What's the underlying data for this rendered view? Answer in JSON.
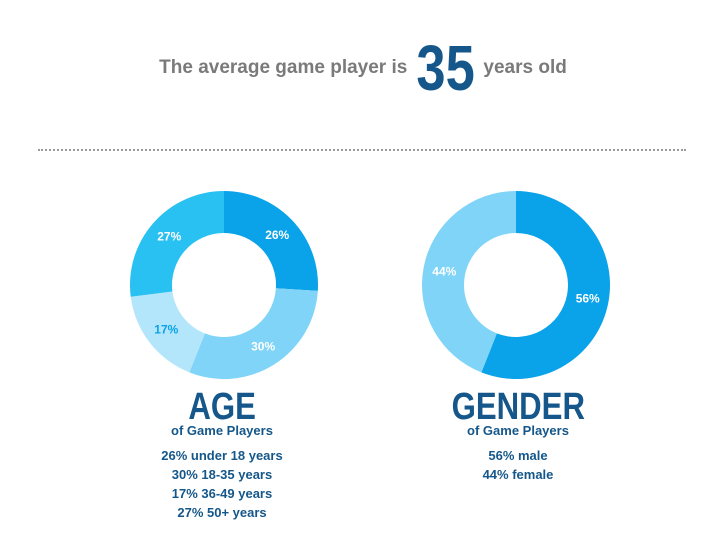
{
  "headline": {
    "prefix": "The average game player is",
    "number": "35",
    "suffix": "years old"
  },
  "chart_data": [
    {
      "type": "pie",
      "title": "AGE",
      "subtitle": "of Game Players",
      "categories": [
        "under 18 years",
        "18-35 years",
        "36-49 years",
        "50+ years"
      ],
      "values": [
        26,
        30,
        17,
        27
      ],
      "labels": [
        "26%",
        "30%",
        "17%",
        "27%"
      ],
      "colors": [
        "#0aa2e8",
        "#7fd4f7",
        "#b3e6fb",
        "#29c0f2"
      ],
      "label_colors": [
        "#ffffff",
        "#ffffff",
        "#0aa2e8",
        "#ffffff"
      ],
      "legend": [
        "26% under 18 years",
        "30% 18-35 years",
        "17% 36-49 years",
        "27% 50+ years"
      ]
    },
    {
      "type": "pie",
      "title": "GENDER",
      "subtitle": "of Game Players",
      "categories": [
        "male",
        "female"
      ],
      "values": [
        56,
        44
      ],
      "labels": [
        "56%",
        "44%"
      ],
      "colors": [
        "#0aa2e8",
        "#7fd4f7"
      ],
      "label_colors": [
        "#ffffff",
        "#ffffff"
      ],
      "legend": [
        "56% male",
        "44% female"
      ]
    }
  ]
}
